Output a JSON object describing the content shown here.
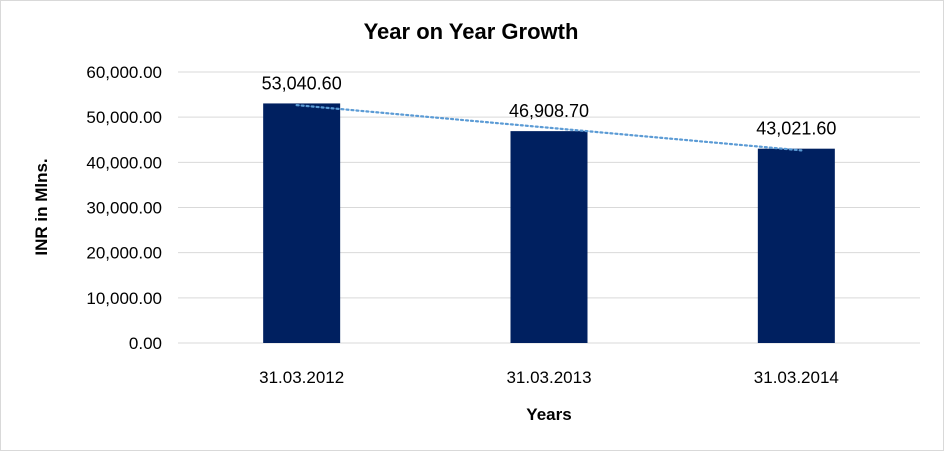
{
  "chart_data": {
    "type": "bar",
    "title": "Year on Year Growth",
    "xlabel": "Years",
    "ylabel": "INR in Mlns.",
    "categories": [
      "31.03.2012",
      "31.03.2013",
      "31.03.2014"
    ],
    "values": [
      53040.6,
      46908.7,
      43021.6
    ],
    "data_labels": [
      "53,040.60",
      "46,908.70",
      "43,021.60"
    ],
    "ylim": [
      0,
      60000
    ],
    "yticks": [
      0,
      10000,
      20000,
      30000,
      40000,
      50000,
      60000
    ],
    "ytick_labels": [
      "0.00",
      "10,000.00",
      "20,000.00",
      "30,000.00",
      "40,000.00",
      "50,000.00",
      "60,000.00"
    ],
    "grid": true,
    "legend": "none",
    "trendline": "linear",
    "bar_color": "#002060",
    "trendline_color": "#5b9bd5"
  }
}
